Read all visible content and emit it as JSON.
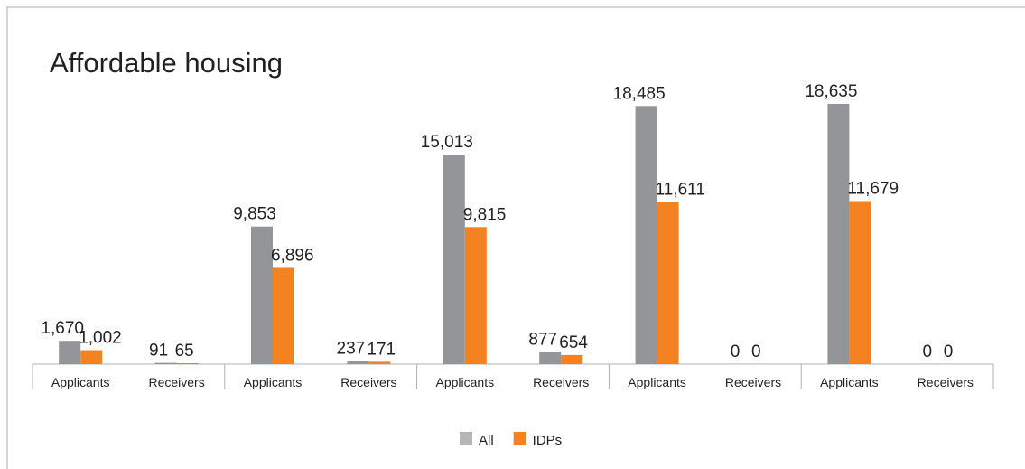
{
  "chart_data": {
    "type": "bar",
    "title": "Affordable housing",
    "categories": [
      "Applicants",
      "Receivers",
      "Applicants",
      "Receivers",
      "Applicants",
      "Receivers",
      "Applicants",
      "Receivers",
      "Applicants",
      "Receivers"
    ],
    "series": [
      {
        "name": "All",
        "color": "#939598",
        "values": [
          1670,
          91,
          9853,
          237,
          15013,
          877,
          18485,
          0,
          18635,
          0
        ],
        "value_labels": [
          "1,670",
          "91",
          "9,853",
          "237",
          "15,013",
          "877",
          "18,485",
          "0",
          "18,635",
          "0"
        ]
      },
      {
        "name": "IDPs",
        "color": "#f58220",
        "values": [
          1002,
          65,
          6896,
          171,
          9815,
          654,
          11611,
          0,
          11679,
          0
        ],
        "value_labels": [
          "1,002",
          "65",
          "6,896",
          "171",
          "9,815",
          "654",
          "11,611",
          "0",
          "11,679",
          "0"
        ]
      }
    ],
    "legend": "bottom"
  }
}
